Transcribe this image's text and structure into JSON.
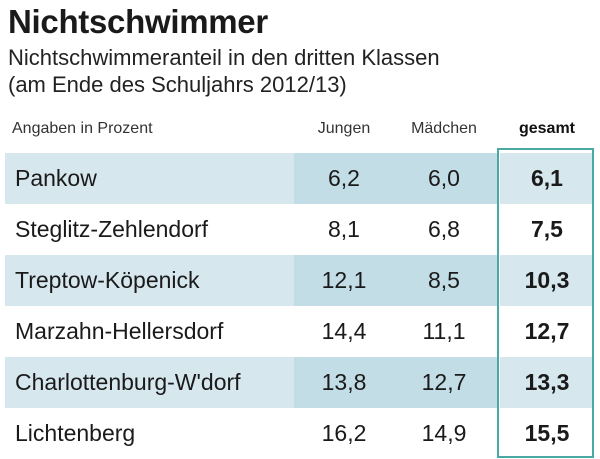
{
  "title": "Nichtschwimmer",
  "subtitle_line1": "Nichtschwimmeranteil in den dritten Klassen",
  "subtitle_line2": "(am Ende des Schuljahrs 2012/13)",
  "header": {
    "note": "Angaben in Prozent",
    "col_boys": "Jungen",
    "col_girls": "Mädchen",
    "col_total": "gesamt"
  },
  "colors": {
    "band_light": "#d6e7ee",
    "band_dark": "#c3dde7",
    "total_frame": "#4aa9a4"
  },
  "chart_data": {
    "type": "table",
    "title": "Nichtschwimmer",
    "subtitle": "Nichtschwimmeranteil in den dritten Klassen (am Ende des Schuljahrs 2012/13)",
    "unit_note": "Angaben in Prozent",
    "columns": [
      "Jungen",
      "Mädchen",
      "gesamt"
    ],
    "rows": [
      {
        "district": "Pankow",
        "jungen": "6,2",
        "maedchen": "6,0",
        "gesamt": "6,1"
      },
      {
        "district": "Steglitz-Zehlendorf",
        "jungen": "8,1",
        "maedchen": "6,8",
        "gesamt": "7,5"
      },
      {
        "district": "Treptow-Köpenick",
        "jungen": "12,1",
        "maedchen": "8,5",
        "gesamt": "10,3"
      },
      {
        "district": "Marzahn-Hellersdorf",
        "jungen": "14,4",
        "maedchen": "11,1",
        "gesamt": "12,7"
      },
      {
        "district": "Charlottenburg-W'dorf",
        "jungen": "13,8",
        "maedchen": "12,7",
        "gesamt": "13,3"
      },
      {
        "district": "Lichtenberg",
        "jungen": "16,2",
        "maedchen": "14,9",
        "gesamt": "15,5"
      }
    ]
  }
}
